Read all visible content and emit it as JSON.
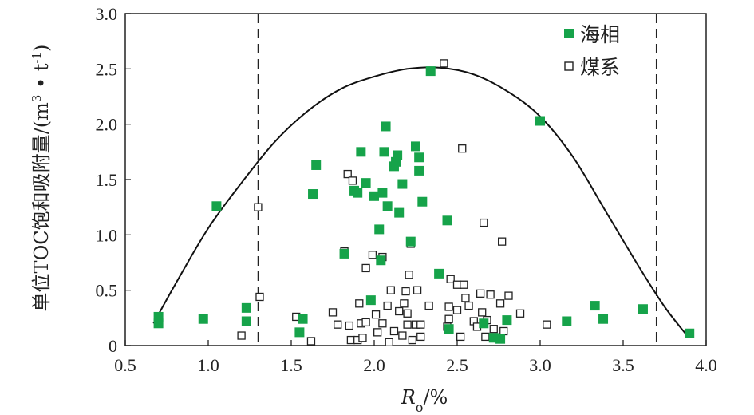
{
  "chart_data": {
    "type": "scatter",
    "ylabel": "单位TOC饱和吸附量/(m³·t⁻¹)",
    "ylabel_parts": {
      "main": "单位TOC饱和吸附量/(m",
      "sup1": "3",
      "mid": " • t",
      "sup2": "-1",
      "end": ")"
    },
    "xlabel": "Ro/%",
    "xlabel_parts": {
      "r": "R",
      "sub": "o",
      "rest": "/%"
    },
    "xlim": [
      0.5,
      4.0
    ],
    "ylim": [
      0,
      3.0
    ],
    "x_ticks": [
      "0.5",
      "1.0",
      "1.5",
      "2.0",
      "2.5",
      "3.0",
      "3.5",
      "4.0"
    ],
    "y_ticks": [
      "0",
      "0.5",
      "1.0",
      "1.5",
      "2.0",
      "2.5",
      "3.0"
    ],
    "reference_lines_x": [
      1.3,
      3.7
    ],
    "legend_position": "top-right",
    "colors": {
      "marine": "#16a34a",
      "coal": "#222222",
      "curve": "#111111"
    },
    "series": [
      {
        "name": "海相",
        "marker": "filled-square",
        "points": [
          [
            0.7,
            0.26
          ],
          [
            0.7,
            0.2
          ],
          [
            0.97,
            0.24
          ],
          [
            1.05,
            1.26
          ],
          [
            1.23,
            0.34
          ],
          [
            1.23,
            0.22
          ],
          [
            1.55,
            0.12
          ],
          [
            1.57,
            0.24
          ],
          [
            1.63,
            1.37
          ],
          [
            1.65,
            1.63
          ],
          [
            1.82,
            0.83
          ],
          [
            1.88,
            1.4
          ],
          [
            1.9,
            1.38
          ],
          [
            1.92,
            1.75
          ],
          [
            1.95,
            1.47
          ],
          [
            1.98,
            0.41
          ],
          [
            2.0,
            1.35
          ],
          [
            2.03,
            1.05
          ],
          [
            2.04,
            0.77
          ],
          [
            2.05,
            1.38
          ],
          [
            2.06,
            1.75
          ],
          [
            2.07,
            1.98
          ],
          [
            2.08,
            1.26
          ],
          [
            2.12,
            1.62
          ],
          [
            2.13,
            1.66
          ],
          [
            2.14,
            1.72
          ],
          [
            2.15,
            1.2
          ],
          [
            2.17,
            1.46
          ],
          [
            2.22,
            0.94
          ],
          [
            2.25,
            1.8
          ],
          [
            2.27,
            1.58
          ],
          [
            2.27,
            1.7
          ],
          [
            2.29,
            1.3
          ],
          [
            2.34,
            2.48
          ],
          [
            2.39,
            0.65
          ],
          [
            2.44,
            1.13
          ],
          [
            2.45,
            0.15
          ],
          [
            2.66,
            0.2
          ],
          [
            2.72,
            0.07
          ],
          [
            2.76,
            0.06
          ],
          [
            2.8,
            0.23
          ],
          [
            3.0,
            2.03
          ],
          [
            3.16,
            0.22
          ],
          [
            3.33,
            0.36
          ],
          [
            3.38,
            0.24
          ],
          [
            3.62,
            0.33
          ],
          [
            3.9,
            0.11
          ]
        ]
      },
      {
        "name": "煤系",
        "marker": "open-square",
        "points": [
          [
            1.2,
            0.09
          ],
          [
            1.3,
            1.25
          ],
          [
            1.31,
            0.44
          ],
          [
            1.53,
            0.26
          ],
          [
            1.62,
            0.04
          ],
          [
            1.75,
            0.3
          ],
          [
            1.78,
            0.19
          ],
          [
            1.82,
            0.85
          ],
          [
            1.84,
            1.55
          ],
          [
            1.85,
            0.18
          ],
          [
            1.86,
            0.05
          ],
          [
            1.87,
            1.49
          ],
          [
            1.9,
            0.05
          ],
          [
            1.91,
            0.38
          ],
          [
            1.92,
            0.2
          ],
          [
            1.93,
            0.07
          ],
          [
            1.95,
            0.7
          ],
          [
            1.95,
            0.21
          ],
          [
            1.99,
            0.82
          ],
          [
            2.01,
            0.28
          ],
          [
            2.02,
            0.12
          ],
          [
            2.05,
            0.8
          ],
          [
            2.05,
            0.2
          ],
          [
            2.08,
            0.36
          ],
          [
            2.09,
            0.03
          ],
          [
            2.1,
            0.5
          ],
          [
            2.12,
            0.13
          ],
          [
            2.15,
            0.31
          ],
          [
            2.17,
            0.09
          ],
          [
            2.18,
            0.38
          ],
          [
            2.19,
            0.49
          ],
          [
            2.2,
            0.29
          ],
          [
            2.2,
            0.19
          ],
          [
            2.21,
            0.64
          ],
          [
            2.22,
            0.92
          ],
          [
            2.23,
            0.05
          ],
          [
            2.25,
            0.19
          ],
          [
            2.26,
            0.5
          ],
          [
            2.28,
            0.08
          ],
          [
            2.28,
            0.19
          ],
          [
            2.33,
            0.36
          ],
          [
            2.42,
            2.55
          ],
          [
            2.44,
            0.17
          ],
          [
            2.45,
            0.24
          ],
          [
            2.45,
            0.35
          ],
          [
            2.46,
            0.6
          ],
          [
            2.5,
            0.55
          ],
          [
            2.5,
            0.32
          ],
          [
            2.52,
            0.08
          ],
          [
            2.53,
            1.78
          ],
          [
            2.54,
            0.55
          ],
          [
            2.55,
            0.43
          ],
          [
            2.57,
            0.36
          ],
          [
            2.6,
            0.22
          ],
          [
            2.62,
            0.17
          ],
          [
            2.64,
            0.47
          ],
          [
            2.65,
            0.3
          ],
          [
            2.66,
            1.11
          ],
          [
            2.67,
            0.08
          ],
          [
            2.68,
            0.23
          ],
          [
            2.7,
            0.46
          ],
          [
            2.72,
            0.15
          ],
          [
            2.76,
            0.38
          ],
          [
            2.77,
            0.94
          ],
          [
            2.78,
            0.13
          ],
          [
            2.81,
            0.45
          ],
          [
            2.88,
            0.29
          ],
          [
            3.04,
            0.19
          ]
        ]
      }
    ],
    "fit_curve": [
      [
        0.67,
        0.2
      ],
      [
        0.8,
        0.55
      ],
      [
        1.0,
        1.06
      ],
      [
        1.2,
        1.47
      ],
      [
        1.4,
        1.84
      ],
      [
        1.6,
        2.12
      ],
      [
        1.8,
        2.32
      ],
      [
        2.0,
        2.43
      ],
      [
        2.2,
        2.5
      ],
      [
        2.4,
        2.51
      ],
      [
        2.6,
        2.45
      ],
      [
        2.8,
        2.3
      ],
      [
        3.0,
        2.07
      ],
      [
        3.2,
        1.7
      ],
      [
        3.4,
        1.2
      ],
      [
        3.6,
        0.7
      ],
      [
        3.75,
        0.35
      ],
      [
        3.88,
        0.1
      ]
    ]
  }
}
